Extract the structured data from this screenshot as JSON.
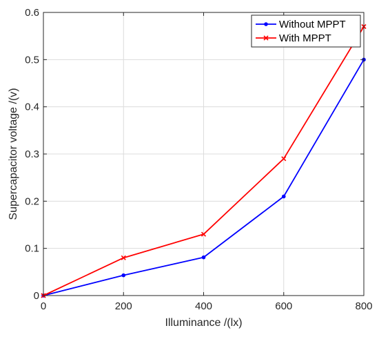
{
  "chart_data": {
    "type": "line",
    "xlabel": "Illuminance /(lx)",
    "ylabel": "Supercapacitor voltage /(v)",
    "xlim": [
      0,
      800
    ],
    "ylim": [
      0,
      0.6
    ],
    "xticks": [
      0,
      200,
      400,
      600,
      800
    ],
    "yticks": [
      0,
      0.1,
      0.2,
      0.3,
      0.4,
      0.5,
      0.6
    ],
    "xtick_labels": [
      "0",
      "200",
      "400",
      "600",
      "800"
    ],
    "ytick_labels": [
      "0",
      "0.1",
      "0.2",
      "0.3",
      "0.4",
      "0.5",
      "0.6"
    ],
    "grid": true,
    "legend_position": "top-right",
    "series": [
      {
        "name": "Without MPPT",
        "color": "#0000ff",
        "marker": "dot",
        "x": [
          0,
          200,
          400,
          600,
          800
        ],
        "values": [
          0,
          0.043,
          0.081,
          0.21,
          0.5
        ]
      },
      {
        "name": "With MPPT",
        "color": "#ff0000",
        "marker": "cross",
        "x": [
          0,
          200,
          400,
          600,
          800
        ],
        "values": [
          0,
          0.08,
          0.13,
          0.29,
          0.57
        ]
      }
    ]
  }
}
